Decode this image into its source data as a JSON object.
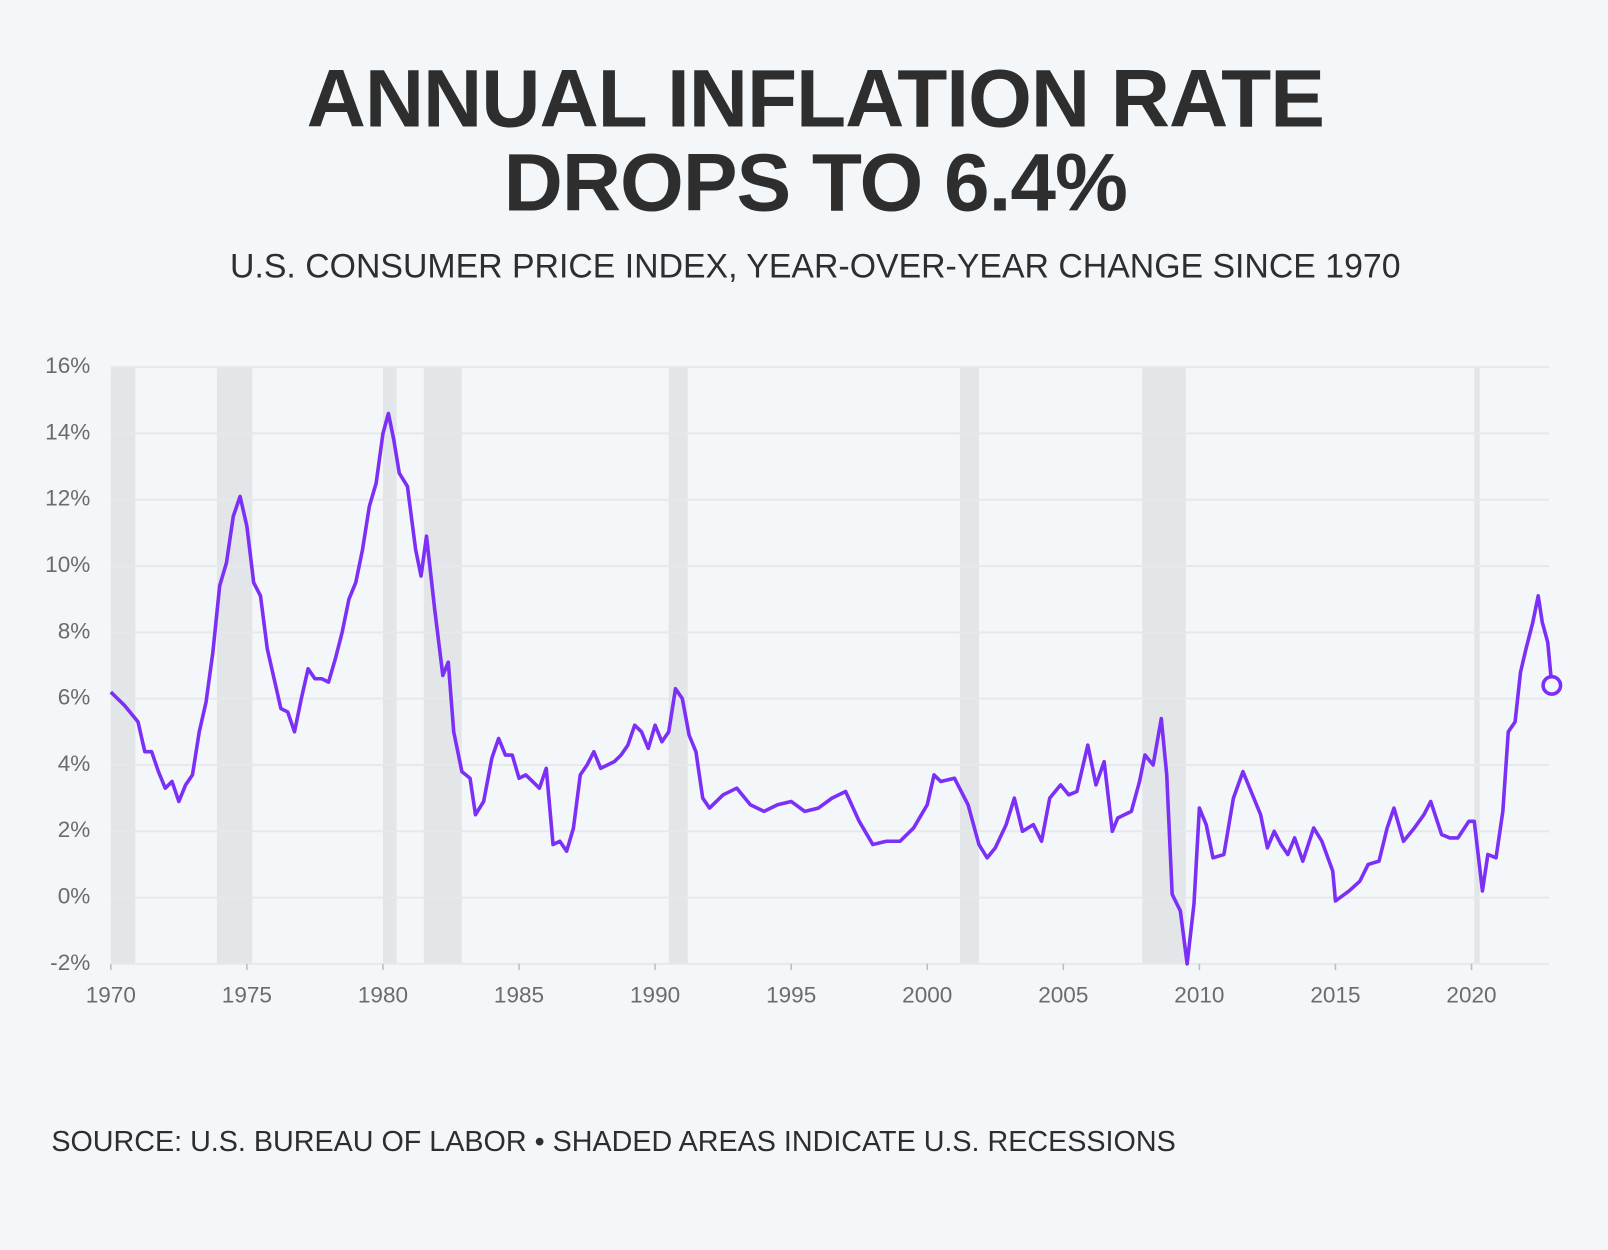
{
  "chart_data": {
    "type": "line",
    "title": [
      "ANNUAL INFLATION RATE",
      "DROPS TO 6.4%"
    ],
    "subtitle": "U.S. CONSUMER PRICE INDEX, YEAR-OVER-YEAR CHANGE SINCE 1970",
    "source": "SOURCE: U.S. BUREAU OF LABOR • SHADED AREAS INDICATE U.S. RECESSIONS",
    "xlim": [
      1970,
      2023
    ],
    "ylim": [
      -2,
      16
    ],
    "xticks": [
      1970,
      1975,
      1980,
      1985,
      1990,
      1995,
      2000,
      2005,
      2010,
      2015,
      2020
    ],
    "yticks": [
      {
        "value": -2,
        "label": "-2%"
      },
      {
        "value": 0,
        "label": "0%"
      },
      {
        "value": 2,
        "label": "2%"
      },
      {
        "value": 4,
        "label": "4%"
      },
      {
        "value": 6,
        "label": "6%"
      },
      {
        "value": 8,
        "label": "8%"
      },
      {
        "value": 10,
        "label": "10%"
      },
      {
        "value": 12,
        "label": "12%"
      },
      {
        "value": 14,
        "label": "14%"
      },
      {
        "value": 16,
        "label": "16%"
      }
    ],
    "grid": true,
    "recession_color": "#e3e6e9",
    "recessions": [
      [
        1970.0,
        1970.9
      ],
      [
        1973.9,
        1975.2
      ],
      [
        1980.0,
        1980.5
      ],
      [
        1981.5,
        1982.9
      ],
      [
        1990.5,
        1991.2
      ],
      [
        2001.2,
        2001.9
      ],
      [
        2007.9,
        2009.5
      ],
      [
        2020.1,
        2020.3
      ]
    ],
    "x": [
      1970.0,
      1970.5,
      1971.0,
      1971.25,
      1971.5,
      1971.75,
      1972.0,
      1972.25,
      1972.5,
      1972.75,
      1973.0,
      1973.25,
      1973.5,
      1973.75,
      1974.0,
      1974.25,
      1974.5,
      1974.75,
      1975.0,
      1975.25,
      1975.5,
      1975.75,
      1976.0,
      1976.25,
      1976.5,
      1976.75,
      1977.0,
      1977.25,
      1977.5,
      1977.75,
      1978.0,
      1978.25,
      1978.5,
      1978.75,
      1979.0,
      1979.25,
      1979.5,
      1979.75,
      1980.0,
      1980.2,
      1980.4,
      1980.6,
      1980.9,
      1981.2,
      1981.4,
      1981.6,
      1981.9,
      1982.2,
      1982.4,
      1982.6,
      1982.9,
      1983.2,
      1983.4,
      1983.7,
      1984.0,
      1984.25,
      1984.5,
      1984.75,
      1985.0,
      1985.25,
      1985.5,
      1985.75,
      1986.0,
      1986.25,
      1986.5,
      1986.75,
      1987.0,
      1987.25,
      1987.5,
      1987.75,
      1988.0,
      1988.25,
      1988.5,
      1988.75,
      1989.0,
      1989.25,
      1989.5,
      1989.75,
      1990.0,
      1990.25,
      1990.5,
      1990.75,
      1991.0,
      1991.25,
      1991.5,
      1991.75,
      1992.0,
      1992.5,
      1993.0,
      1993.5,
      1994.0,
      1994.5,
      1995.0,
      1995.5,
      1996.0,
      1996.5,
      1997.0,
      1997.5,
      1998.0,
      1998.5,
      1999.0,
      1999.5,
      2000.0,
      2000.25,
      2000.5,
      2001.0,
      2001.5,
      2001.9,
      2002.2,
      2002.5,
      2002.9,
      2003.2,
      2003.5,
      2003.9,
      2004.2,
      2004.5,
      2004.9,
      2005.2,
      2005.5,
      2005.9,
      2006.2,
      2006.5,
      2006.8,
      2007.0,
      2007.5,
      2007.8,
      2008.0,
      2008.3,
      2008.6,
      2008.8,
      2009.0,
      2009.3,
      2009.55,
      2009.8,
      2010.0,
      2010.25,
      2010.5,
      2010.9,
      2011.25,
      2011.6,
      2011.9,
      2012.25,
      2012.5,
      2012.75,
      2013.0,
      2013.25,
      2013.5,
      2013.8,
      2014.2,
      2014.5,
      2014.9,
      2015.0,
      2015.5,
      2015.9,
      2016.2,
      2016.6,
      2016.9,
      2017.15,
      2017.5,
      2017.9,
      2018.25,
      2018.5,
      2018.9,
      2019.2,
      2019.5,
      2019.9,
      2020.1,
      2020.4,
      2020.6,
      2020.9,
      2021.15,
      2021.35,
      2021.6,
      2021.8,
      2022.0,
      2022.25,
      2022.45,
      2022.6,
      2022.8,
      2022.95
    ],
    "series": [
      {
        "name": "CPI",
        "color": "#7b2ff7",
        "values": [
          6.2,
          5.8,
          5.3,
          4.4,
          4.4,
          3.8,
          3.3,
          3.5,
          2.9,
          3.4,
          3.7,
          5.0,
          5.9,
          7.4,
          9.4,
          10.1,
          11.5,
          12.1,
          11.2,
          9.5,
          9.1,
          7.5,
          6.6,
          5.7,
          5.6,
          5.0,
          6.0,
          6.9,
          6.6,
          6.6,
          6.5,
          7.2,
          8.0,
          9.0,
          9.5,
          10.5,
          11.8,
          12.5,
          14.0,
          14.6,
          13.8,
          12.8,
          12.4,
          10.5,
          9.7,
          10.9,
          8.7,
          6.7,
          7.1,
          5.0,
          3.8,
          3.6,
          2.5,
          2.9,
          4.2,
          4.8,
          4.3,
          4.3,
          3.6,
          3.7,
          3.5,
          3.3,
          3.9,
          1.6,
          1.7,
          1.4,
          2.1,
          3.7,
          4.0,
          4.4,
          3.9,
          4.0,
          4.1,
          4.3,
          4.6,
          5.2,
          5.0,
          4.5,
          5.2,
          4.7,
          5.0,
          6.3,
          6.0,
          4.9,
          4.4,
          3.0,
          2.7,
          3.1,
          3.3,
          2.8,
          2.6,
          2.8,
          2.9,
          2.6,
          2.7,
          3.0,
          3.2,
          2.3,
          1.6,
          1.7,
          1.7,
          2.1,
          2.8,
          3.7,
          3.5,
          3.6,
          2.8,
          1.6,
          1.2,
          1.5,
          2.2,
          3.0,
          2.0,
          2.2,
          1.7,
          3.0,
          3.4,
          3.1,
          3.2,
          4.6,
          3.4,
          4.1,
          2.0,
          2.4,
          2.6,
          3.5,
          4.3,
          4.0,
          5.4,
          3.7,
          0.1,
          -0.4,
          -2.0,
          -0.2,
          2.7,
          2.2,
          1.2,
          1.3,
          3.0,
          3.8,
          3.2,
          2.5,
          1.5,
          2.0,
          1.6,
          1.3,
          1.8,
          1.1,
          2.1,
          1.7,
          0.8,
          -0.1,
          0.2,
          0.5,
          1.0,
          1.1,
          2.1,
          2.7,
          1.7,
          2.1,
          2.5,
          2.9,
          1.9,
          1.8,
          1.8,
          2.3,
          2.3,
          0.2,
          1.3,
          1.2,
          2.6,
          5.0,
          5.3,
          6.8,
          7.5,
          8.3,
          9.1,
          8.3,
          7.7,
          6.4
        ]
      }
    ]
  }
}
